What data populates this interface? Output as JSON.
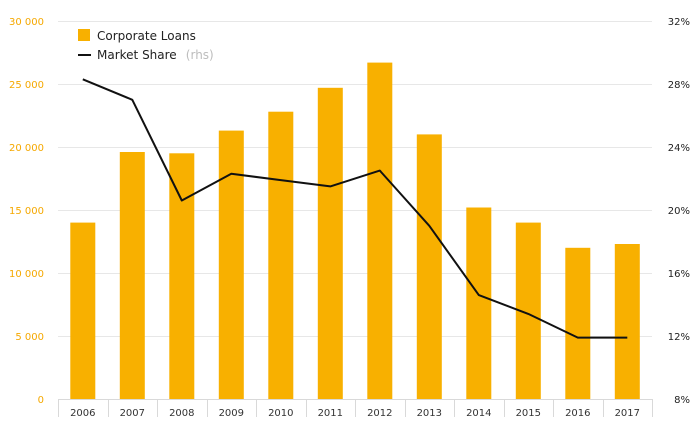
{
  "chart_data": {
    "type": "bar",
    "categories": [
      "2006",
      "2007",
      "2008",
      "2009",
      "2010",
      "2011",
      "2012",
      "2013",
      "2014",
      "2015",
      "2016",
      "2017"
    ],
    "series": [
      {
        "name": "Corporate Loans",
        "type": "bar",
        "axis": "left",
        "color": "#f8b000",
        "values": [
          14000,
          19600,
          19500,
          21300,
          22800,
          24700,
          26700,
          21000,
          15200,
          14000,
          12000,
          12300
        ]
      },
      {
        "name": "Market Share",
        "name_note": "(rhs)",
        "type": "line",
        "axis": "right",
        "color": "#111111",
        "values": [
          28.3,
          27.0,
          20.6,
          22.3,
          21.9,
          21.5,
          22.5,
          19.0,
          14.6,
          13.4,
          11.9,
          11.9
        ]
      }
    ],
    "y_left": {
      "min": 0,
      "max": 30000,
      "ticks": [
        0,
        5000,
        10000,
        15000,
        20000,
        25000,
        30000
      ],
      "tick_labels": [
        "0",
        "5 000",
        "10 000",
        "15 000",
        "20 000",
        "25 000",
        "30 000"
      ],
      "color": "#f5a800"
    },
    "y_right": {
      "min": 8,
      "max": 32,
      "ticks": [
        8,
        12,
        16,
        20,
        24,
        28,
        32
      ],
      "tick_labels": [
        "8%",
        "12%",
        "16%",
        "20%",
        "24%",
        "28%",
        "32%"
      ]
    },
    "grid": true,
    "legend": "top-left",
    "title": "",
    "xlabel": "",
    "ylabel": ""
  }
}
